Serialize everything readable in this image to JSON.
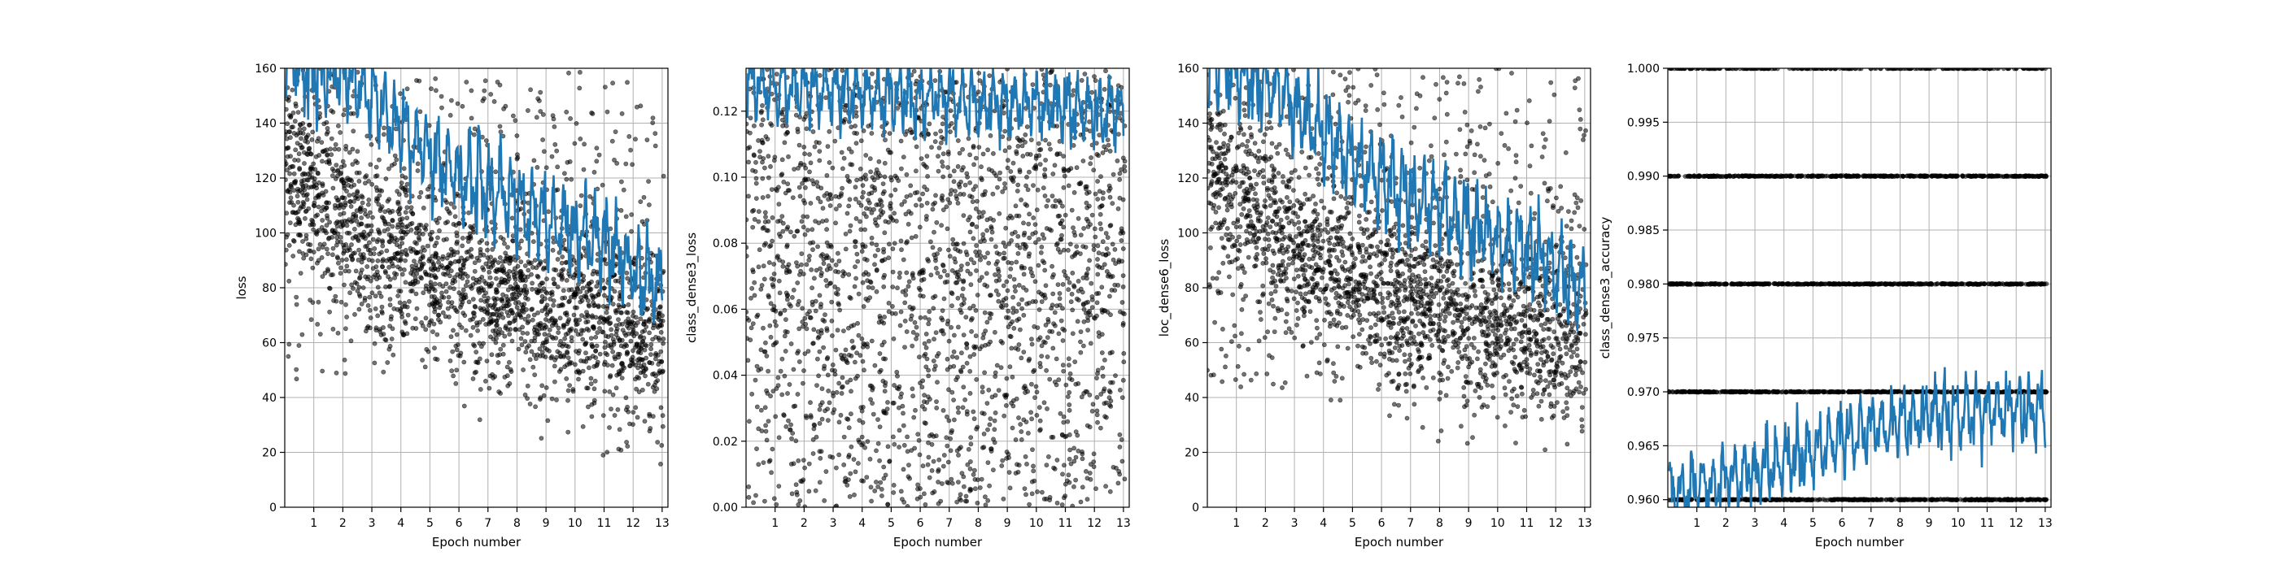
{
  "colors": {
    "line": "#1f77b4",
    "points": "#000000",
    "grid": "#b0b0b0",
    "frame": "#000000"
  },
  "chart_data": [
    {
      "type": "scatter",
      "xlabel": "Epoch number",
      "ylabel": "loss",
      "xlim": [
        0,
        13.2
      ],
      "ylim": [
        0,
        160
      ],
      "xticks": [
        1,
        2,
        3,
        4,
        5,
        6,
        7,
        8,
        9,
        10,
        11,
        12,
        13
      ],
      "yticks": [
        0,
        20,
        40,
        60,
        80,
        100,
        120,
        140,
        160
      ],
      "tick_decimals": 0,
      "grid": true,
      "scatter_trend": [
        [
          0,
          128
        ],
        [
          3,
          98
        ],
        [
          6,
          82
        ],
        [
          9,
          72
        ],
        [
          13,
          62
        ]
      ],
      "scatter_spread": 16,
      "scatter_extra": {
        "min": 45,
        "max": 160,
        "fraction": 0.2
      },
      "line_trend": [
        [
          0,
          162
        ],
        [
          2,
          158
        ],
        [
          5,
          128
        ],
        [
          8,
          110
        ],
        [
          11,
          96
        ],
        [
          13,
          80
        ]
      ],
      "line_amp": 18
    },
    {
      "type": "scatter",
      "xlabel": "Epoch number",
      "ylabel": "class_dense3_loss",
      "xlim": [
        0,
        13.2
      ],
      "ylim": [
        0,
        0.133
      ],
      "xticks": [
        1,
        2,
        3,
        4,
        5,
        6,
        7,
        8,
        9,
        10,
        11,
        12,
        13
      ],
      "yticks": [
        0.0,
        0.02,
        0.04,
        0.06,
        0.08,
        0.1,
        0.12
      ],
      "tick_decimals": 2,
      "grid": true,
      "scatter_trend": [
        [
          0,
          0.08
        ],
        [
          13,
          0.075
        ]
      ],
      "scatter_spread": 0.04,
      "scatter_extra": {
        "min": 0.0,
        "max": 0.133,
        "fraction": 0.5
      },
      "line_trend": [
        [
          0,
          0.128
        ],
        [
          13,
          0.12
        ]
      ],
      "line_amp": 0.012
    },
    {
      "type": "scatter",
      "xlabel": "Epoch number",
      "ylabel": "loc_dense6_loss",
      "xlim": [
        0,
        13.2
      ],
      "ylim": [
        0,
        160
      ],
      "xticks": [
        1,
        2,
        3,
        4,
        5,
        6,
        7,
        8,
        9,
        10,
        11,
        12,
        13
      ],
      "yticks": [
        0,
        20,
        40,
        60,
        80,
        100,
        120,
        140,
        160
      ],
      "tick_decimals": 0,
      "grid": true,
      "scatter_trend": [
        [
          0,
          125
        ],
        [
          3,
          96
        ],
        [
          6,
          80
        ],
        [
          9,
          70
        ],
        [
          13,
          60
        ]
      ],
      "scatter_spread": 16,
      "scatter_extra": {
        "min": 43,
        "max": 160,
        "fraction": 0.2
      },
      "line_trend": [
        [
          0,
          162
        ],
        [
          2,
          156
        ],
        [
          5,
          126
        ],
        [
          8,
          108
        ],
        [
          11,
          94
        ],
        [
          13,
          78
        ]
      ],
      "line_amp": 18
    },
    {
      "type": "scatter",
      "xlabel": "Epoch number",
      "ylabel": "class_dense3_accuracy",
      "xlim": [
        0,
        13.2
      ],
      "ylim": [
        0.9593,
        1.0
      ],
      "xticks": [
        1,
        2,
        3,
        4,
        5,
        6,
        7,
        8,
        9,
        10,
        11,
        12,
        13
      ],
      "yticks": [
        0.96,
        0.965,
        0.97,
        0.975,
        0.98,
        0.985,
        0.99,
        0.995,
        1.0
      ],
      "tick_decimals": 3,
      "grid": true,
      "scatter_levels": [
        0.96,
        0.97,
        0.98,
        0.99,
        1.0
      ],
      "line_trend": [
        [
          0,
          0.9605
        ],
        [
          3,
          0.9625
        ],
        [
          6,
          0.9655
        ],
        [
          9,
          0.968
        ],
        [
          13,
          0.9685
        ]
      ],
      "line_amp": 0.0035
    }
  ]
}
